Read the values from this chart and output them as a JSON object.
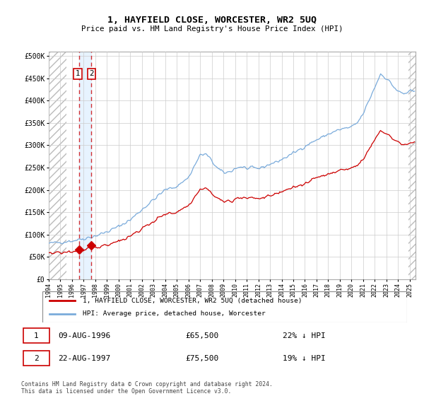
{
  "title": "1, HAYFIELD CLOSE, WORCESTER, WR2 5UQ",
  "subtitle": "Price paid vs. HM Land Registry's House Price Index (HPI)",
  "price_paid": [
    {
      "date": 1996.617,
      "price": 65500,
      "label": "1"
    },
    {
      "date": 1997.617,
      "price": 75500,
      "label": "2"
    }
  ],
  "legend_line1": "1, HAYFIELD CLOSE, WORCESTER, WR2 5UQ (detached house)",
  "legend_line2": "HPI: Average price, detached house, Worcester",
  "table_rows": [
    [
      "1",
      "09-AUG-1996",
      "£65,500",
      "22% ↓ HPI"
    ],
    [
      "2",
      "22-AUG-1997",
      "£75,500",
      "19% ↓ HPI"
    ]
  ],
  "footer": "Contains HM Land Registry data © Crown copyright and database right 2024.\nThis data is licensed under the Open Government Licence v3.0.",
  "hpi_color": "#7aabdb",
  "price_color": "#cc0000",
  "ylim": [
    0,
    500000
  ],
  "yticks": [
    0,
    50000,
    100000,
    150000,
    200000,
    250000,
    300000,
    350000,
    400000,
    450000,
    500000
  ],
  "xmin": 1994.0,
  "xmax": 2025.5
}
